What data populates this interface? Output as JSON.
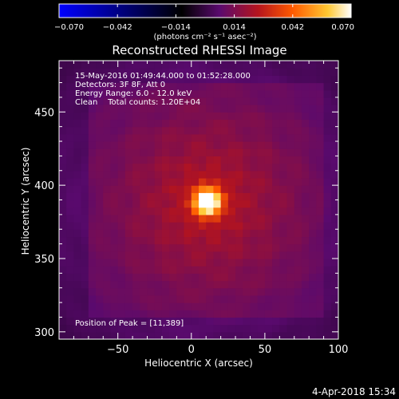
{
  "chart_data": {
    "type": "heatmap",
    "title": "Reconstructed RHESSI Image",
    "xlabel": "Heliocentric X (arcsec)",
    "ylabel": "Heliocentric Y (arcsec)",
    "xlim": [
      -90,
      100
    ],
    "ylim": [
      295,
      485
    ],
    "x_ticks": [
      -50,
      0,
      50,
      100
    ],
    "x_tick_labels": [
      "−50",
      "0",
      "50",
      "100"
    ],
    "y_ticks": [
      300,
      350,
      400,
      450
    ],
    "y_tick_labels": [
      "300",
      "350",
      "400",
      "450"
    ],
    "colorbar": {
      "min": -0.07,
      "max": 0.07,
      "ticks": [
        -0.07,
        -0.042,
        -0.014,
        0.014,
        0.042,
        0.07
      ],
      "tick_labels": [
        "−0.070",
        "−0.042",
        "−0.014",
        "0.014",
        "0.042",
        "0.070"
      ],
      "unit_label": "(photons cm⁻² s⁻¹ asec⁻²)",
      "colors": [
        "#0000ff",
        "#000000",
        "#5a0a6e",
        "#b4141e",
        "#ff5a00",
        "#ffc832",
        "#ffffff"
      ]
    },
    "info_lines": [
      "15-May-2016 01:49:44.000 to 01:52:28.000",
      "Detectors: 3F 8F, Att 0",
      "Energy Range: 6.0 - 12.0 keV",
      "Clean    Total counts: 1.20E+04"
    ],
    "peak_label": "Position of Peak = [11,389]",
    "peak": {
      "x": 11,
      "y": 389,
      "value": 0.07
    }
  },
  "footer_timestamp": "4-Apr-2018 15:34"
}
